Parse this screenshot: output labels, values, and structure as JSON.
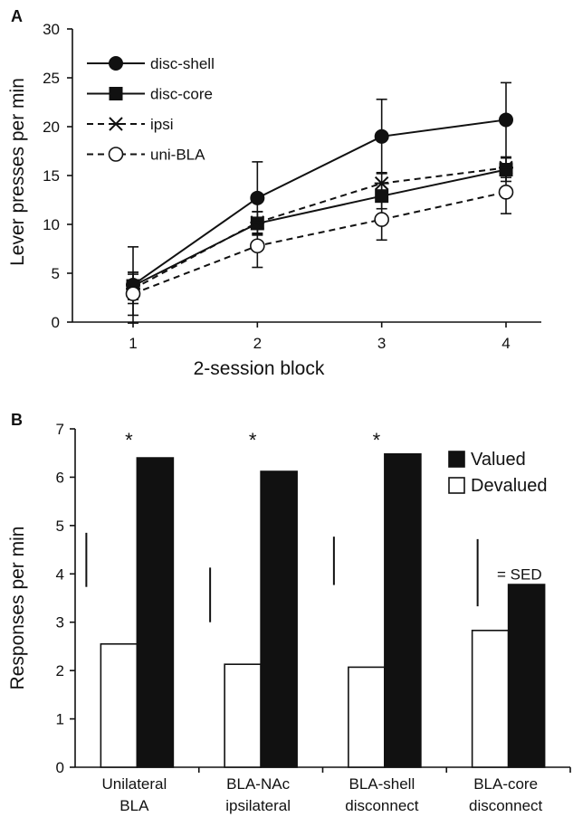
{
  "chart_data": [
    {
      "panel": "A",
      "type": "line",
      "xlabel": "2-session block",
      "ylabel": "Lever presses per min",
      "x": [
        1,
        2,
        3,
        4
      ],
      "xticks": [
        "1",
        "2",
        "3",
        "4"
      ],
      "ylim": [
        0,
        30
      ],
      "yticks": [
        "0",
        "5",
        "10",
        "15",
        "20",
        "25",
        "30"
      ],
      "grid": false,
      "legend_position": "top-left",
      "series": [
        {
          "name": "disc-shell",
          "marker": "filled-circle",
          "line": "solid",
          "values": [
            3.8,
            12.7,
            19.0,
            20.7
          ],
          "error": [
            3.9,
            3.7,
            3.8,
            3.8
          ]
        },
        {
          "name": "disc-core",
          "marker": "filled-square",
          "line": "solid",
          "values": [
            3.7,
            10.1,
            12.9,
            15.6
          ],
          "error": [
            1.4,
            1.2,
            1.3,
            1.2
          ]
        },
        {
          "name": "ipsi",
          "marker": "asterisk",
          "line": "dashed",
          "values": [
            3.4,
            10.2,
            14.2,
            15.8
          ],
          "error": [
            1.5,
            1.1,
            1.1,
            1.0
          ]
        },
        {
          "name": "uni-BLA",
          "marker": "open-circle",
          "line": "dashed",
          "values": [
            2.9,
            7.8,
            10.5,
            13.3
          ],
          "error": [
            2.2,
            2.2,
            2.1,
            2.2
          ]
        }
      ]
    },
    {
      "panel": "B",
      "type": "bar",
      "ylabel": "Responses per min",
      "ylim": [
        0,
        7
      ],
      "yticks": [
        "0",
        "1",
        "2",
        "3",
        "4",
        "5",
        "6",
        "7"
      ],
      "categories": [
        [
          "Unilateral",
          "BLA"
        ],
        [
          "BLA-NAc",
          "ipsilateral"
        ],
        [
          "BLA-shell",
          "disconnect"
        ],
        [
          "BLA-core",
          "disconnect"
        ]
      ],
      "legend_position": "top-right",
      "series": [
        {
          "name": "Devalued",
          "fill": "#ffffff",
          "values": [
            2.55,
            2.13,
            2.07,
            2.83
          ]
        },
        {
          "name": "Valued",
          "fill": "#111111",
          "values": [
            6.4,
            6.12,
            6.48,
            3.78
          ]
        }
      ],
      "sed_bars": [
        [
          3.73,
          4.85
        ],
        [
          3.0,
          4.13
        ],
        [
          3.77,
          4.77
        ],
        [
          3.33,
          4.72
        ]
      ],
      "sed_label": "= SED",
      "significance": [
        "*",
        "*",
        "*",
        ""
      ]
    }
  ],
  "panel_labels": [
    "A",
    "B"
  ]
}
